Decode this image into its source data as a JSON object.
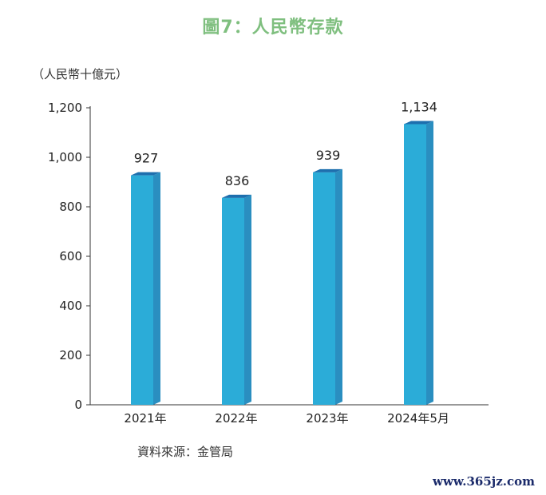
{
  "header": {
    "title": "圖7：人民幣存款",
    "unit": "（人民幣十億元）"
  },
  "footer": {
    "source": "資料來源：金管局",
    "watermark": "www.365jz.com"
  },
  "colors": {
    "bar_front": "#2bacd8",
    "bar_side": "#2a8ec0",
    "bar_top": "#1d6fae",
    "title": "#7fbf7f"
  },
  "chart_data": {
    "type": "bar",
    "title": "圖7：人民幣存款",
    "ylabel": "（人民幣十億元）",
    "xlabel": "",
    "categories": [
      "2021年",
      "2022年",
      "2023年",
      "2024年5月"
    ],
    "values": [
      927,
      836,
      939,
      1134
    ],
    "data_labels": [
      "927",
      "836",
      "939",
      "1,134"
    ],
    "ylim": [
      0,
      1200
    ],
    "yticks": [
      0,
      200,
      400,
      600,
      800,
      1000,
      1200
    ],
    "ytick_labels": [
      "0",
      "200",
      "400",
      "600",
      "800",
      "1,000",
      "1,200"
    ],
    "grid": false,
    "legend": "none"
  }
}
